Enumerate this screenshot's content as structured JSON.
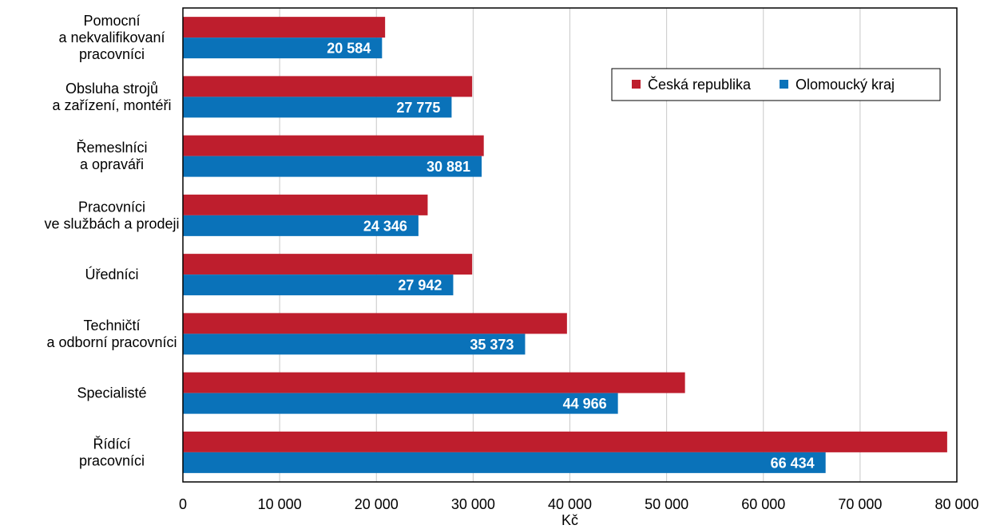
{
  "colors": {
    "series_cr": "#be1e2d",
    "series_ok": "#0a72b9",
    "grid": "#c8c8c8",
    "axis": "#000000"
  },
  "chart_data": {
    "type": "bar",
    "orientation": "horizontal",
    "categories": [
      [
        "Pomocní",
        "a nekvalifikovaní",
        "pracovníci"
      ],
      [
        "Obsluha strojů",
        "a zařízení, montéři"
      ],
      [
        "Řemeslníci",
        "a opraváři"
      ],
      [
        "Pracovníci",
        "ve službách a prodeji"
      ],
      [
        "Úředníci"
      ],
      [
        "Techničtí",
        "a odborní pracovníci"
      ],
      [
        "Specialisté"
      ],
      [
        "Řídící",
        "pracovníci"
      ]
    ],
    "series": [
      {
        "name": "Česká republika",
        "values": [
          20900,
          29900,
          31100,
          25300,
          29900,
          39700,
          51900,
          79000
        ],
        "labels": [
          "",
          "",
          "",
          "",
          "",
          "",
          "",
          ""
        ]
      },
      {
        "name": "Olomoucký kraj",
        "values": [
          20584,
          27775,
          30881,
          24346,
          27942,
          35373,
          44966,
          66434
        ],
        "labels": [
          "20 584",
          "27 775",
          "30 881",
          "24 346",
          "27 942",
          "35 373",
          "44 966",
          "66 434"
        ]
      }
    ],
    "xlim": [
      0,
      80000
    ],
    "xticks": [
      0,
      10000,
      20000,
      30000,
      40000,
      50000,
      60000,
      70000,
      80000
    ],
    "xtick_labels": [
      "0",
      "10 000",
      "20 000",
      "30 000",
      "40 000",
      "50 000",
      "60 000",
      "70 000",
      "80 000"
    ],
    "xlabel": "Kč",
    "title": "",
    "grid": "vertical",
    "legend_position": "top-right"
  }
}
